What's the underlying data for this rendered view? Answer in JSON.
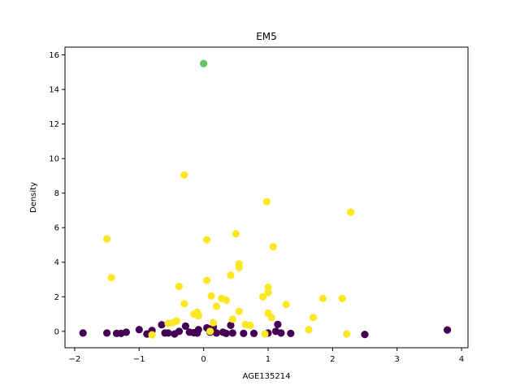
{
  "chart_data": {
    "type": "scatter",
    "title": "EM5",
    "xlabel": "AGE135214",
    "ylabel": "Density",
    "xlim": [
      -2.15,
      4.1
    ],
    "ylim": [
      -0.95,
      16.45
    ],
    "xticks": [
      -2,
      -1,
      0,
      1,
      2,
      3,
      4
    ],
    "yticks": [
      0,
      2,
      4,
      6,
      8,
      10,
      12,
      14,
      16
    ],
    "grid": false,
    "legend": "none",
    "series": [
      {
        "color": "#440154",
        "points": [
          [
            -1.87,
            -0.1
          ],
          [
            -1.5,
            -0.1
          ],
          [
            -1.35,
            -0.12
          ],
          [
            -1.28,
            -0.12
          ],
          [
            -1.2,
            -0.05
          ],
          [
            -1.0,
            0.1
          ],
          [
            -0.88,
            -0.15
          ],
          [
            -0.8,
            0.05
          ],
          [
            -0.65,
            0.38
          ],
          [
            -0.6,
            -0.1
          ],
          [
            -0.55,
            -0.1
          ],
          [
            -0.45,
            -0.15
          ],
          [
            -0.38,
            0.0
          ],
          [
            -0.28,
            0.3
          ],
          [
            -0.22,
            -0.05
          ],
          [
            -0.15,
            -0.08
          ],
          [
            -0.1,
            -0.1
          ],
          [
            -0.08,
            0.1
          ],
          [
            0.05,
            0.2
          ],
          [
            0.1,
            -0.05
          ],
          [
            0.15,
            0.25
          ],
          [
            0.2,
            -0.1
          ],
          [
            0.3,
            -0.05
          ],
          [
            0.35,
            -0.12
          ],
          [
            0.42,
            0.35
          ],
          [
            0.45,
            -0.1
          ],
          [
            0.62,
            -0.12
          ],
          [
            0.78,
            -0.12
          ],
          [
            1.0,
            -0.1
          ],
          [
            1.12,
            0.0
          ],
          [
            1.15,
            0.4
          ],
          [
            1.2,
            -0.1
          ],
          [
            1.35,
            -0.12
          ],
          [
            2.5,
            -0.18
          ],
          [
            3.78,
            0.08
          ]
        ]
      },
      {
        "color": "#5ec962",
        "points": [
          [
            0.0,
            15.5
          ]
        ]
      },
      {
        "color": "#fde725",
        "points": [
          [
            -1.5,
            5.35
          ],
          [
            -1.43,
            3.1
          ],
          [
            -0.8,
            -0.2
          ],
          [
            -0.55,
            0.45
          ],
          [
            -0.48,
            0.5
          ],
          [
            -0.42,
            0.6
          ],
          [
            -0.38,
            2.6
          ],
          [
            -0.3,
            9.05
          ],
          [
            -0.3,
            1.6
          ],
          [
            -0.15,
            1.0
          ],
          [
            -0.1,
            1.1
          ],
          [
            -0.08,
            0.9
          ],
          [
            0.05,
            5.3
          ],
          [
            0.05,
            2.95
          ],
          [
            0.1,
            0.0
          ],
          [
            0.12,
            2.05
          ],
          [
            0.15,
            0.5
          ],
          [
            0.2,
            1.45
          ],
          [
            0.28,
            1.9
          ],
          [
            0.35,
            1.8
          ],
          [
            0.42,
            3.25
          ],
          [
            0.45,
            0.7
          ],
          [
            0.5,
            5.65
          ],
          [
            0.55,
            3.9
          ],
          [
            0.55,
            3.7
          ],
          [
            0.55,
            1.15
          ],
          [
            0.65,
            0.4
          ],
          [
            0.72,
            0.35
          ],
          [
            0.92,
            2.0
          ],
          [
            0.95,
            -0.15
          ],
          [
            0.98,
            7.5
          ],
          [
            1.0,
            2.55
          ],
          [
            1.0,
            2.25
          ],
          [
            1.0,
            1.05
          ],
          [
            1.05,
            0.8
          ],
          [
            1.08,
            4.9
          ],
          [
            1.28,
            1.55
          ],
          [
            1.63,
            0.1
          ],
          [
            1.7,
            0.8
          ],
          [
            1.85,
            1.9
          ],
          [
            2.15,
            1.9
          ],
          [
            2.22,
            -0.15
          ],
          [
            2.28,
            6.9
          ]
        ]
      }
    ]
  }
}
